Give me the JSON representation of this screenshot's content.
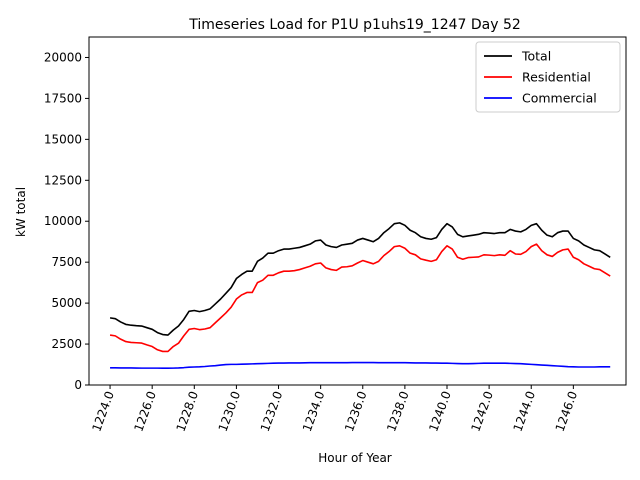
{
  "chart_data": {
    "type": "line",
    "title": "Timeseries Load for P1U p1uhs19_1247  Day 52",
    "xlabel": "Hour of Year",
    "ylabel": "kW total",
    "xlim": [
      1223.0,
      1248.5
    ],
    "ylim": [
      0,
      21250
    ],
    "x_ticks": [
      1224.0,
      1226.0,
      1228.0,
      1230.0,
      1232.0,
      1234.0,
      1236.0,
      1238.0,
      1240.0,
      1242.0,
      1244.0,
      1246.0
    ],
    "x_tick_labels": [
      "1224.0",
      "1226.0",
      "1228.0",
      "1230.0",
      "1232.0",
      "1234.0",
      "1236.0",
      "1238.0",
      "1240.0",
      "1242.0",
      "1244.0",
      "1246.0"
    ],
    "y_ticks": [
      0,
      2500,
      5000,
      7500,
      10000,
      12500,
      15000,
      17500,
      20000
    ],
    "y_tick_labels": [
      "0",
      "2500",
      "5000",
      "7500",
      "10000",
      "12500",
      "15000",
      "17500",
      "20000"
    ],
    "legend": {
      "position": "top-right",
      "entries": [
        "Total",
        "Residential",
        "Commercial"
      ]
    },
    "x": [
      1224.0,
      1224.25,
      1224.5,
      1224.75,
      1225.0,
      1225.25,
      1225.5,
      1225.75,
      1226.0,
      1226.25,
      1226.5,
      1226.75,
      1227.0,
      1227.25,
      1227.5,
      1227.75,
      1228.0,
      1228.25,
      1228.5,
      1228.75,
      1229.0,
      1229.25,
      1229.5,
      1229.75,
      1230.0,
      1230.25,
      1230.5,
      1230.75,
      1231.0,
      1231.25,
      1231.5,
      1231.75,
      1232.0,
      1232.25,
      1232.5,
      1232.75,
      1233.0,
      1233.25,
      1233.5,
      1233.75,
      1234.0,
      1234.25,
      1234.5,
      1234.75,
      1235.0,
      1235.25,
      1235.5,
      1235.75,
      1236.0,
      1236.25,
      1236.5,
      1236.75,
      1237.0,
      1237.25,
      1237.5,
      1237.75,
      1238.0,
      1238.25,
      1238.5,
      1238.75,
      1239.0,
      1239.25,
      1239.5,
      1239.75,
      1240.0,
      1240.25,
      1240.5,
      1240.75,
      1241.0,
      1241.25,
      1241.5,
      1241.75,
      1242.0,
      1242.25,
      1242.5,
      1242.75,
      1243.0,
      1243.25,
      1243.5,
      1243.75,
      1244.0,
      1244.25,
      1244.5,
      1244.75,
      1245.0,
      1245.25,
      1245.5,
      1245.75,
      1246.0,
      1246.25,
      1246.5,
      1246.75,
      1247.0,
      1247.25,
      1247.5,
      1247.75
    ],
    "series": [
      {
        "name": "Total",
        "color": "#000000",
        "values": [
          4100,
          4050,
          3850,
          3700,
          3650,
          3620,
          3600,
          3500,
          3400,
          3200,
          3080,
          3050,
          3350,
          3600,
          4000,
          4500,
          4550,
          4480,
          4550,
          4650,
          4950,
          5250,
          5600,
          5950,
          6500,
          6750,
          6950,
          6950,
          7550,
          7750,
          8050,
          8050,
          8200,
          8300,
          8300,
          8350,
          8400,
          8500,
          8600,
          8800,
          8850,
          8550,
          8450,
          8400,
          8550,
          8600,
          8650,
          8850,
          8950,
          8850,
          8750,
          8950,
          9300,
          9550,
          9850,
          9900,
          9750,
          9450,
          9300,
          9050,
          8950,
          8900,
          9000,
          9500,
          9850,
          9650,
          9200,
          9050,
          9100,
          9150,
          9200,
          9300,
          9280,
          9250,
          9300,
          9300,
          9500,
          9400,
          9350,
          9500,
          9750,
          9850,
          9450,
          9150,
          9050,
          9300,
          9400,
          9400,
          8950,
          8800,
          8550,
          8400,
          8250,
          8200,
          8000,
          7800
        ]
      },
      {
        "name": "Residential",
        "color": "#ff0000",
        "values": [
          3050,
          3000,
          2800,
          2650,
          2600,
          2580,
          2560,
          2450,
          2350,
          2150,
          2050,
          2050,
          2350,
          2550,
          3000,
          3400,
          3450,
          3380,
          3420,
          3500,
          3800,
          4100,
          4400,
          4750,
          5250,
          5500,
          5650,
          5650,
          6250,
          6400,
          6700,
          6700,
          6850,
          6950,
          6950,
          6980,
          7050,
          7150,
          7250,
          7400,
          7450,
          7150,
          7050,
          7000,
          7200,
          7220,
          7280,
          7450,
          7600,
          7500,
          7400,
          7550,
          7900,
          8150,
          8450,
          8500,
          8350,
          8050,
          7950,
          7700,
          7620,
          7550,
          7650,
          8150,
          8500,
          8300,
          7800,
          7680,
          7780,
          7800,
          7820,
          7950,
          7930,
          7900,
          7950,
          7920,
          8200,
          8000,
          7980,
          8150,
          8450,
          8600,
          8200,
          7950,
          7850,
          8100,
          8250,
          8300,
          7800,
          7650,
          7400,
          7250,
          7100,
          7050,
          6850,
          6650
        ]
      },
      {
        "name": "Commercial",
        "color": "#0000ff",
        "values": [
          1050,
          1050,
          1045,
          1040,
          1040,
          1035,
          1030,
          1030,
          1030,
          1030,
          1025,
          1025,
          1030,
          1040,
          1060,
          1090,
          1100,
          1110,
          1130,
          1160,
          1180,
          1220,
          1250,
          1260,
          1260,
          1270,
          1280,
          1290,
          1300,
          1310,
          1320,
          1330,
          1340,
          1340,
          1345,
          1350,
          1350,
          1355,
          1360,
          1360,
          1360,
          1360,
          1360,
          1360,
          1360,
          1365,
          1370,
          1370,
          1370,
          1370,
          1370,
          1365,
          1365,
          1365,
          1365,
          1360,
          1360,
          1355,
          1350,
          1350,
          1345,
          1340,
          1340,
          1335,
          1330,
          1320,
          1310,
          1300,
          1300,
          1310,
          1320,
          1330,
          1330,
          1330,
          1330,
          1330,
          1320,
          1310,
          1300,
          1280,
          1260,
          1240,
          1220,
          1200,
          1180,
          1160,
          1140,
          1120,
          1110,
          1100,
          1100,
          1100,
          1100,
          1110,
          1110,
          1110
        ]
      }
    ]
  }
}
